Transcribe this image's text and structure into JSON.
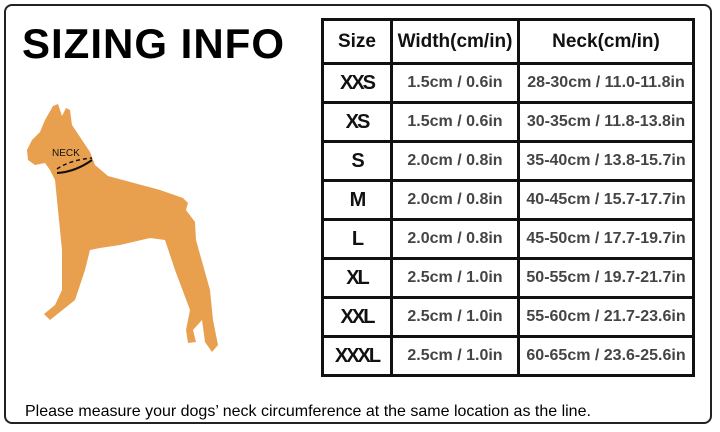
{
  "title": "SIZING INFO",
  "dog": {
    "label": "NECK",
    "color": "#e8a04f"
  },
  "table": {
    "headers": [
      "Size",
      "Width(cm/in)",
      "Neck(cm/in)"
    ],
    "rows": [
      {
        "size": "XXS",
        "width": "1.5cm / 0.6in",
        "neck": "28-30cm / 11.0-11.8in"
      },
      {
        "size": "XS",
        "width": "1.5cm / 0.6in",
        "neck": "30-35cm / 11.8-13.8in"
      },
      {
        "size": "S",
        "width": "2.0cm / 0.8in",
        "neck": "35-40cm / 13.8-15.7in"
      },
      {
        "size": "M",
        "width": "2.0cm / 0.8in",
        "neck": "40-45cm / 15.7-17.7in"
      },
      {
        "size": "L",
        "width": "2.0cm / 0.8in",
        "neck": "45-50cm / 17.7-19.7in"
      },
      {
        "size": "XL",
        "width": "2.5cm / 1.0in",
        "neck": "50-55cm / 19.7-21.7in"
      },
      {
        "size": "XXL",
        "width": "2.5cm / 1.0in",
        "neck": "55-60cm / 21.7-23.6in"
      },
      {
        "size": "XXXL",
        "width": "2.5cm / 1.0in",
        "neck": "60-65cm / 23.6-25.6in"
      }
    ]
  },
  "note": "Please measure your dogs’  neck circumference at the same location as the line."
}
